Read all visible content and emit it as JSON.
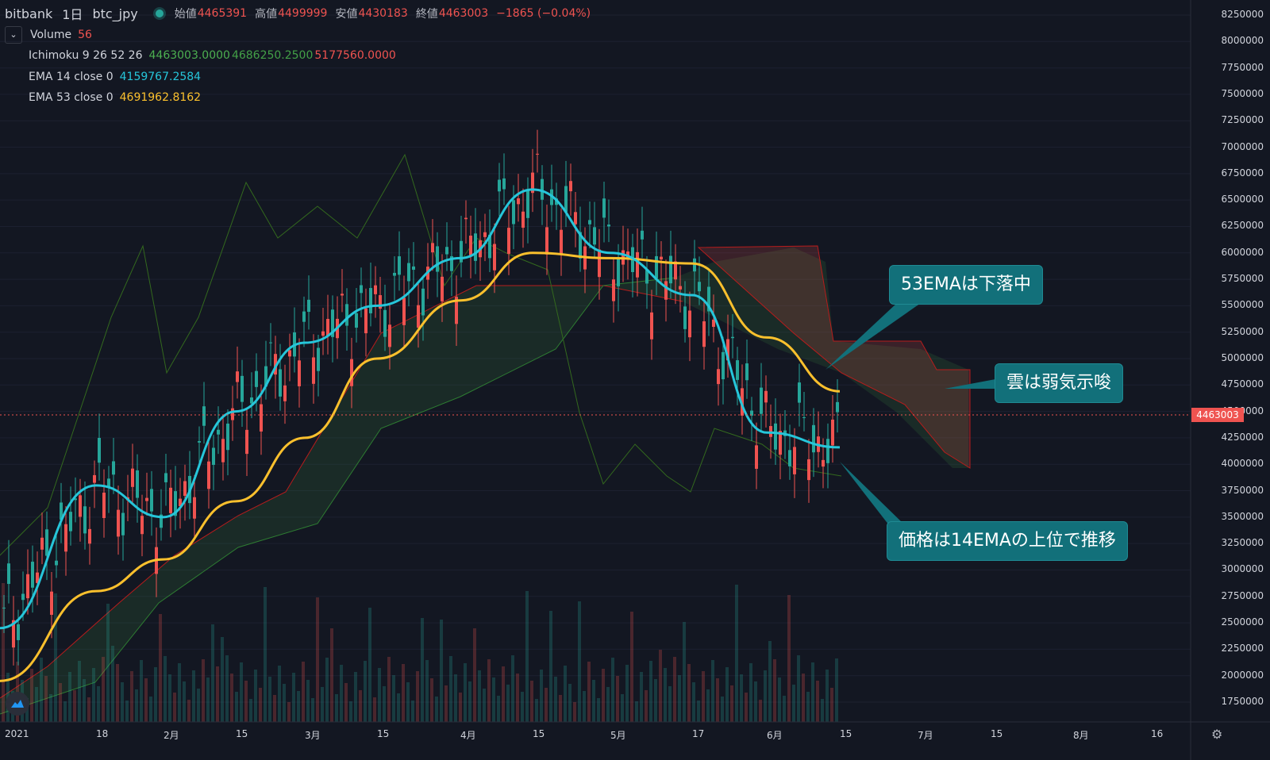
{
  "header": {
    "exchange": "bitbank",
    "interval": "1日",
    "symbol": "btc_jpy",
    "ohlc": [
      {
        "label": "始値",
        "value": "4465391"
      },
      {
        "label": "高値",
        "value": "4499999"
      },
      {
        "label": "安値",
        "value": "4430183"
      },
      {
        "label": "終値",
        "value": "4463003"
      }
    ],
    "change": "−1865 (−0.04%)"
  },
  "indicators": [
    {
      "name": "Volume",
      "values": [
        "56"
      ],
      "colors": [
        "#ef5350"
      ]
    },
    {
      "name": "Ichimoku 9 26 52 26",
      "values": [
        "4463003.0000",
        "4686250.2500",
        "5177560.0000"
      ],
      "colors": [
        "#4caf50",
        "#43a047",
        "#ef5350"
      ]
    },
    {
      "name": "EMA 14 close 0",
      "values": [
        "4159767.2584"
      ],
      "colors": [
        "#26c6da"
      ]
    },
    {
      "name": "EMA 53 close 0",
      "values": [
        "4691962.8162"
      ],
      "colors": [
        "#fbc02d"
      ]
    }
  ],
  "price_axis": {
    "labels": [
      "8250000",
      "8000000",
      "7750000",
      "7500000",
      "7250000",
      "7000000",
      "6750000",
      "6500000",
      "6250000",
      "6000000",
      "5750000",
      "5500000",
      "5250000",
      "5000000",
      "4750000",
      "4500000",
      "4250000",
      "4000000",
      "3750000",
      "3500000",
      "3250000",
      "3000000",
      "2750000",
      "2500000",
      "2250000",
      "2000000",
      "1750000"
    ],
    "current_price": "4463003"
  },
  "time_axis": {
    "labels": [
      "2021",
      "18",
      "2月",
      "15",
      "3月",
      "15",
      "4月",
      "15",
      "5月",
      "17",
      "6月",
      "15",
      "7月",
      "15",
      "8月",
      "16"
    ]
  },
  "annotations": {
    "ema53": "53EMAは下落中",
    "cloud": "雲は弱気示唆",
    "ema14": "価格は14EMAの上位で推移"
  },
  "colors": {
    "up": "#26a69a",
    "down": "#ef5350",
    "ema14": "#26c6da",
    "ema53": "#fbc02d",
    "background": "#131722"
  },
  "chart_data": {
    "type": "line",
    "title": "",
    "y_axis_range": [
      1600000,
      8300000
    ],
    "series": [
      {
        "name": "EMA 14 close 0",
        "x": [
          "2021-01-01",
          "2021-01-18",
          "2021-02-01",
          "2021-02-15",
          "2021-03-01",
          "2021-03-15",
          "2021-04-01",
          "2021-04-15",
          "2021-05-01",
          "2021-05-17",
          "2021-06-01",
          "2021-06-15"
        ],
        "values": [
          2450000,
          3800000,
          3500000,
          4500000,
          5150000,
          5500000,
          5950000,
          6600000,
          6000000,
          5600000,
          4300000,
          4160000
        ]
      },
      {
        "name": "EMA 53 close 0",
        "x": [
          "2021-01-01",
          "2021-01-18",
          "2021-02-01",
          "2021-02-15",
          "2021-03-01",
          "2021-03-15",
          "2021-04-01",
          "2021-04-15",
          "2021-05-01",
          "2021-05-17",
          "2021-06-01",
          "2021-06-15"
        ],
        "values": [
          1950000,
          2800000,
          3100000,
          3650000,
          4250000,
          5000000,
          5550000,
          6000000,
          5950000,
          5900000,
          5200000,
          4690000
        ]
      }
    ]
  }
}
